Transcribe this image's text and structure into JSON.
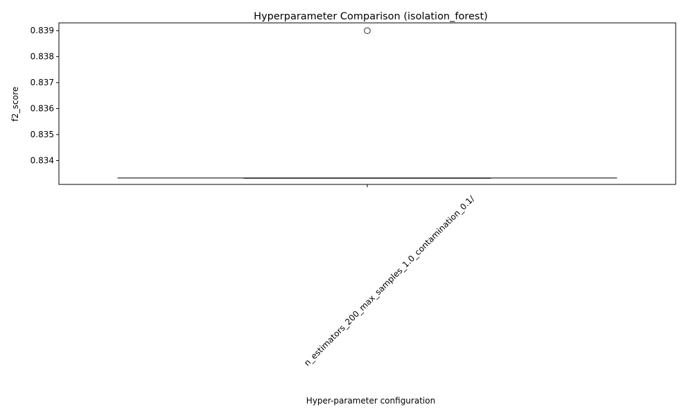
{
  "chart_data": {
    "type": "box",
    "title": "Hyperparameter Comparison (isolation_forest)",
    "xlabel": "Hyper-parameter configuration",
    "ylabel": "f2_score",
    "ylim": [
      0.83308,
      0.8393
    ],
    "y_ticks": [
      0.834,
      0.835,
      0.836,
      0.837,
      0.838,
      0.839
    ],
    "y_tick_labels": [
      "0.834",
      "0.835",
      "0.836",
      "0.837",
      "0.838",
      "0.839"
    ],
    "categories": [
      "n_estimators_200_max_samples_1.0_contamination_0.1/"
    ],
    "boxes": [
      {
        "category": "n_estimators_200_max_samples_1.0_contamination_0.1/",
        "whisker_low": 0.83333,
        "q1": 0.83333,
        "median": 0.83333,
        "q3": 0.83333,
        "whisker_high": 0.83333,
        "outliers": [
          0.839
        ]
      }
    ],
    "grid": false,
    "colors": {
      "box_line": "#3f3f3f",
      "axes": "#000000"
    }
  }
}
